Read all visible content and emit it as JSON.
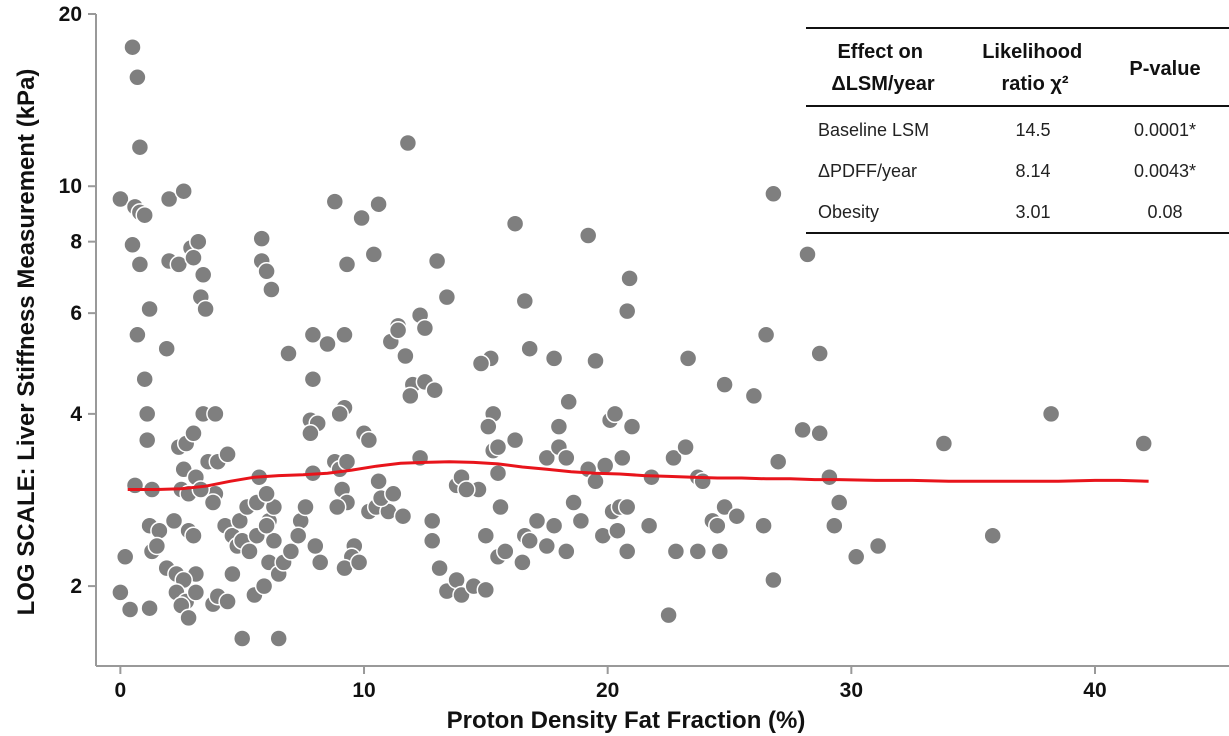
{
  "chart_data": {
    "type": "scatter",
    "xlabel": "Proton Density Fat Fraction (%)",
    "ylabel": "LOG SCALE: Liver Stiffness Measurement (kPa)",
    "x_ticks": [
      "0",
      "10",
      "20",
      "30",
      "40"
    ],
    "y_ticks": [
      "2",
      "4",
      "6",
      "8",
      "10",
      "20"
    ],
    "xlim": [
      -1,
      45.5
    ],
    "ylim": [
      1.45,
      20
    ],
    "y_scale": "log",
    "grid": false,
    "marker_color": "#7f7f7f",
    "trend_color": "#e8141b",
    "points": [
      [
        0.5,
        17.5
      ],
      [
        0.7,
        15.5
      ],
      [
        0.8,
        11.7
      ],
      [
        0.0,
        9.5
      ],
      [
        0.6,
        9.2
      ],
      [
        0.8,
        9.0
      ],
      [
        1.0,
        8.9
      ],
      [
        0.5,
        7.9
      ],
      [
        0.8,
        7.3
      ],
      [
        0.7,
        5.5
      ],
      [
        1.2,
        6.1
      ],
      [
        1.0,
        4.6
      ],
      [
        1.1,
        4.0
      ],
      [
        1.1,
        3.6
      ],
      [
        0.6,
        3.0
      ],
      [
        1.3,
        2.95
      ],
      [
        1.2,
        2.55
      ],
      [
        1.6,
        2.5
      ],
      [
        1.3,
        2.3
      ],
      [
        0.2,
        2.25
      ],
      [
        1.5,
        2.35
      ],
      [
        1.9,
        2.15
      ],
      [
        0.0,
        1.95
      ],
      [
        0.4,
        1.82
      ],
      [
        1.2,
        1.83
      ],
      [
        2.0,
        9.5
      ],
      [
        2.6,
        9.8
      ],
      [
        2.0,
        7.4
      ],
      [
        2.4,
        7.3
      ],
      [
        2.9,
        7.8
      ],
      [
        3.2,
        8.0
      ],
      [
        3.4,
        7.0
      ],
      [
        3.0,
        7.5
      ],
      [
        1.9,
        5.2
      ],
      [
        3.3,
        6.4
      ],
      [
        3.5,
        6.1
      ],
      [
        3.4,
        4.0
      ],
      [
        3.9,
        4.0
      ],
      [
        2.4,
        3.5
      ],
      [
        2.7,
        3.55
      ],
      [
        3.0,
        3.7
      ],
      [
        3.6,
        3.3
      ],
      [
        4.0,
        3.3
      ],
      [
        4.4,
        3.4
      ],
      [
        2.6,
        3.2
      ],
      [
        3.1,
        3.1
      ],
      [
        3.9,
        2.9
      ],
      [
        2.5,
        2.95
      ],
      [
        2.8,
        2.9
      ],
      [
        3.3,
        2.95
      ],
      [
        3.8,
        2.8
      ],
      [
        2.2,
        2.6
      ],
      [
        2.8,
        2.5
      ],
      [
        3.0,
        2.45
      ],
      [
        2.3,
        2.1
      ],
      [
        3.1,
        2.1
      ],
      [
        2.6,
        2.05
      ],
      [
        2.3,
        1.95
      ],
      [
        2.7,
        1.88
      ],
      [
        3.1,
        1.95
      ],
      [
        2.5,
        1.85
      ],
      [
        2.8,
        1.76
      ],
      [
        3.8,
        1.86
      ],
      [
        4.0,
        1.92
      ],
      [
        4.4,
        1.88
      ],
      [
        4.6,
        2.1
      ],
      [
        4.3,
        2.55
      ],
      [
        4.6,
        2.45
      ],
      [
        4.8,
        2.35
      ],
      [
        5.0,
        2.4
      ],
      [
        5.3,
        2.3
      ],
      [
        4.9,
        2.6
      ],
      [
        5.2,
        2.75
      ],
      [
        5.6,
        2.8
      ],
      [
        5.0,
        1.62
      ],
      [
        5.5,
        1.93
      ],
      [
        5.9,
        2.0
      ],
      [
        6.1,
        2.2
      ],
      [
        6.3,
        2.4
      ],
      [
        6.5,
        2.1
      ],
      [
        6.1,
        2.6
      ],
      [
        6.3,
        2.75
      ],
      [
        5.7,
        3.1
      ],
      [
        6.0,
        2.9
      ],
      [
        5.6,
        2.45
      ],
      [
        6.0,
        2.55
      ],
      [
        6.7,
        2.2
      ],
      [
        6.5,
        1.62
      ],
      [
        5.8,
        8.1
      ],
      [
        5.8,
        7.4
      ],
      [
        6.0,
        7.1
      ],
      [
        6.2,
        6.6
      ],
      [
        6.9,
        5.1
      ],
      [
        7.0,
        2.3
      ],
      [
        7.4,
        2.6
      ],
      [
        7.6,
        2.75
      ],
      [
        7.3,
        2.45
      ],
      [
        7.9,
        3.15
      ],
      [
        7.8,
        3.9
      ],
      [
        7.9,
        4.6
      ],
      [
        7.9,
        5.5
      ],
      [
        8.5,
        5.3
      ],
      [
        8.1,
        3.85
      ],
      [
        7.8,
        3.7
      ],
      [
        8.0,
        2.35
      ],
      [
        8.2,
        2.2
      ],
      [
        8.8,
        9.4
      ],
      [
        9.3,
        7.3
      ],
      [
        9.2,
        5.5
      ],
      [
        9.2,
        4.1
      ],
      [
        9.0,
        4.0
      ],
      [
        8.8,
        3.3
      ],
      [
        9.0,
        3.2
      ],
      [
        9.3,
        3.3
      ],
      [
        9.1,
        2.95
      ],
      [
        9.3,
        2.8
      ],
      [
        8.9,
        2.75
      ],
      [
        9.6,
        2.35
      ],
      [
        9.5,
        2.25
      ],
      [
        9.2,
        2.15
      ],
      [
        9.8,
        2.2
      ],
      [
        9.9,
        8.8
      ],
      [
        10.4,
        7.6
      ],
      [
        10.6,
        9.3
      ],
      [
        10.0,
        3.7
      ],
      [
        10.2,
        3.6
      ],
      [
        10.6,
        3.05
      ],
      [
        10.2,
        2.7
      ],
      [
        10.5,
        2.75
      ],
      [
        11.0,
        2.7
      ],
      [
        10.7,
        2.85
      ],
      [
        11.2,
        2.9
      ],
      [
        11.4,
        5.7
      ],
      [
        11.1,
        5.35
      ],
      [
        11.4,
        5.6
      ],
      [
        11.7,
        5.05
      ],
      [
        11.6,
        2.65
      ],
      [
        11.8,
        11.9
      ],
      [
        12.3,
        5.95
      ],
      [
        12.5,
        5.65
      ],
      [
        12.0,
        4.5
      ],
      [
        12.5,
        4.55
      ],
      [
        11.9,
        4.3
      ],
      [
        12.3,
        3.35
      ],
      [
        12.9,
        4.4
      ],
      [
        13.4,
        6.4
      ],
      [
        13.8,
        3.0
      ],
      [
        14.0,
        3.1
      ],
      [
        14.3,
        2.95
      ],
      [
        14.7,
        2.95
      ],
      [
        14.2,
        2.95
      ],
      [
        12.8,
        2.4
      ],
      [
        12.8,
        2.6
      ],
      [
        13.1,
        2.15
      ],
      [
        13.4,
        1.96
      ],
      [
        13.8,
        2.05
      ],
      [
        14.0,
        1.93
      ],
      [
        14.5,
        2.0
      ],
      [
        15.0,
        1.97
      ],
      [
        13.0,
        7.4
      ],
      [
        15.2,
        5.0
      ],
      [
        14.8,
        4.9
      ],
      [
        15.3,
        4.0
      ],
      [
        15.1,
        3.8
      ],
      [
        15.3,
        3.45
      ],
      [
        15.5,
        3.5
      ],
      [
        15.6,
        2.75
      ],
      [
        15.5,
        3.15
      ],
      [
        15.0,
        2.45
      ],
      [
        15.5,
        2.25
      ],
      [
        15.8,
        2.3
      ],
      [
        16.2,
        8.6
      ],
      [
        16.6,
        6.3
      ],
      [
        16.8,
        5.2
      ],
      [
        16.2,
        3.6
      ],
      [
        16.6,
        2.45
      ],
      [
        16.8,
        2.4
      ],
      [
        17.1,
        2.6
      ],
      [
        16.5,
        2.2
      ],
      [
        17.5,
        3.35
      ],
      [
        17.8,
        5.0
      ],
      [
        18.0,
        3.5
      ],
      [
        18.3,
        3.35
      ],
      [
        18.4,
        4.2
      ],
      [
        18.0,
        3.8
      ],
      [
        18.6,
        2.8
      ],
      [
        17.8,
        2.55
      ],
      [
        17.5,
        2.35
      ],
      [
        18.3,
        2.3
      ],
      [
        18.9,
        2.6
      ],
      [
        19.2,
        8.2
      ],
      [
        19.5,
        4.95
      ],
      [
        19.2,
        3.2
      ],
      [
        19.5,
        3.05
      ],
      [
        19.8,
        2.45
      ],
      [
        19.9,
        3.25
      ],
      [
        20.1,
        3.9
      ],
      [
        20.3,
        4.0
      ],
      [
        20.6,
        3.35
      ],
      [
        20.2,
        2.7
      ],
      [
        20.5,
        2.75
      ],
      [
        20.8,
        2.75
      ],
      [
        20.4,
        2.5
      ],
      [
        20.8,
        6.05
      ],
      [
        20.9,
        6.9
      ],
      [
        21.0,
        3.8
      ],
      [
        20.8,
        2.3
      ],
      [
        21.7,
        2.55
      ],
      [
        21.8,
        3.1
      ],
      [
        22.5,
        1.78
      ],
      [
        22.7,
        3.35
      ],
      [
        22.8,
        2.3
      ],
      [
        23.3,
        5.0
      ],
      [
        23.2,
        3.5
      ],
      [
        23.7,
        3.1
      ],
      [
        23.7,
        2.3
      ],
      [
        23.9,
        3.05
      ],
      [
        24.3,
        2.6
      ],
      [
        24.6,
        2.3
      ],
      [
        24.8,
        2.75
      ],
      [
        24.5,
        2.55
      ],
      [
        25.3,
        2.65
      ],
      [
        24.8,
        4.5
      ],
      [
        26.0,
        4.3
      ],
      [
        26.4,
        2.55
      ],
      [
        26.5,
        5.5
      ],
      [
        26.8,
        2.05
      ],
      [
        26.8,
        9.7
      ],
      [
        27.0,
        3.3
      ],
      [
        28.0,
        3.75
      ],
      [
        28.2,
        7.6
      ],
      [
        28.7,
        3.7
      ],
      [
        28.7,
        5.1
      ],
      [
        29.1,
        3.1
      ],
      [
        29.3,
        2.55
      ],
      [
        29.5,
        2.8
      ],
      [
        30.2,
        2.25
      ],
      [
        31.1,
        2.35
      ],
      [
        33.8,
        3.55
      ],
      [
        35.8,
        2.45
      ],
      [
        38.2,
        4.0
      ],
      [
        42.0,
        3.55
      ]
    ],
    "trend": [
      [
        0.3,
        2.95
      ],
      [
        1.5,
        2.95
      ],
      [
        2.5,
        2.96
      ],
      [
        3.5,
        2.99
      ],
      [
        4.5,
        3.05
      ],
      [
        5.5,
        3.1
      ],
      [
        6.5,
        3.12
      ],
      [
        7.5,
        3.13
      ],
      [
        8.5,
        3.15
      ],
      [
        9.5,
        3.19
      ],
      [
        10.5,
        3.24
      ],
      [
        11.5,
        3.28
      ],
      [
        12.5,
        3.29
      ],
      [
        13.5,
        3.3
      ],
      [
        14.5,
        3.29
      ],
      [
        15.5,
        3.27
      ],
      [
        16.5,
        3.23
      ],
      [
        17.5,
        3.2
      ],
      [
        18.5,
        3.17
      ],
      [
        19.5,
        3.15
      ],
      [
        20.5,
        3.14
      ],
      [
        21.5,
        3.12
      ],
      [
        22.5,
        3.11
      ],
      [
        23.5,
        3.1
      ],
      [
        24.5,
        3.09
      ],
      [
        25.5,
        3.09
      ],
      [
        26.5,
        3.08
      ],
      [
        27.5,
        3.08
      ],
      [
        28.5,
        3.07
      ],
      [
        29.5,
        3.07
      ],
      [
        31.0,
        3.06
      ],
      [
        32.5,
        3.06
      ],
      [
        34.0,
        3.05
      ],
      [
        35.5,
        3.05
      ],
      [
        37.0,
        3.05
      ],
      [
        38.5,
        3.05
      ],
      [
        40.0,
        3.06
      ],
      [
        41.0,
        3.06
      ],
      [
        42.2,
        3.05
      ]
    ],
    "table": {
      "headers": [
        [
          "Effect on",
          "ΔLSM/year"
        ],
        [
          "Likelihood",
          "ratio χ²"
        ],
        [
          "P-value"
        ]
      ],
      "rows": [
        [
          "Baseline LSM",
          "14.5",
          "0.0001*"
        ],
        [
          "ΔPDFF/year",
          "8.14",
          "0.0043*"
        ],
        [
          "Obesity",
          "3.01",
          "0.08"
        ]
      ]
    }
  }
}
